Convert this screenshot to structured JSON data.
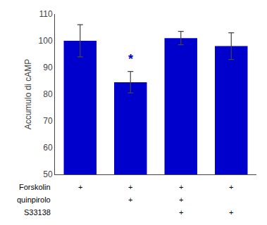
{
  "chart_data": {
    "type": "bar",
    "categories": [
      null,
      null,
      null,
      null
    ],
    "values": [
      100.0,
      84.5,
      101.0,
      98.0
    ],
    "errors": [
      6.0,
      4.0,
      2.5,
      5.0
    ],
    "color": "#0000CC",
    "ylabel": "Accumulo di cAMP",
    "ylim": [
      50,
      110
    ],
    "yticks": [
      50,
      60,
      70,
      80,
      90,
      100,
      110
    ],
    "grid": false,
    "tick_labels": "y",
    "annotations": [
      {
        "text": "*",
        "x": 1,
        "y": 90.0,
        "color": "#0000CC"
      }
    ],
    "table": {
      "rows": [
        {
          "label": "Forskolin",
          "cells": [
            "+",
            "+",
            "+",
            "+"
          ]
        },
        {
          "label": "quinpirolo",
          "cells": [
            null,
            "+",
            "+",
            null
          ]
        },
        {
          "label": "S33138",
          "cells": [
            null,
            null,
            "+",
            "+"
          ]
        }
      ]
    }
  }
}
